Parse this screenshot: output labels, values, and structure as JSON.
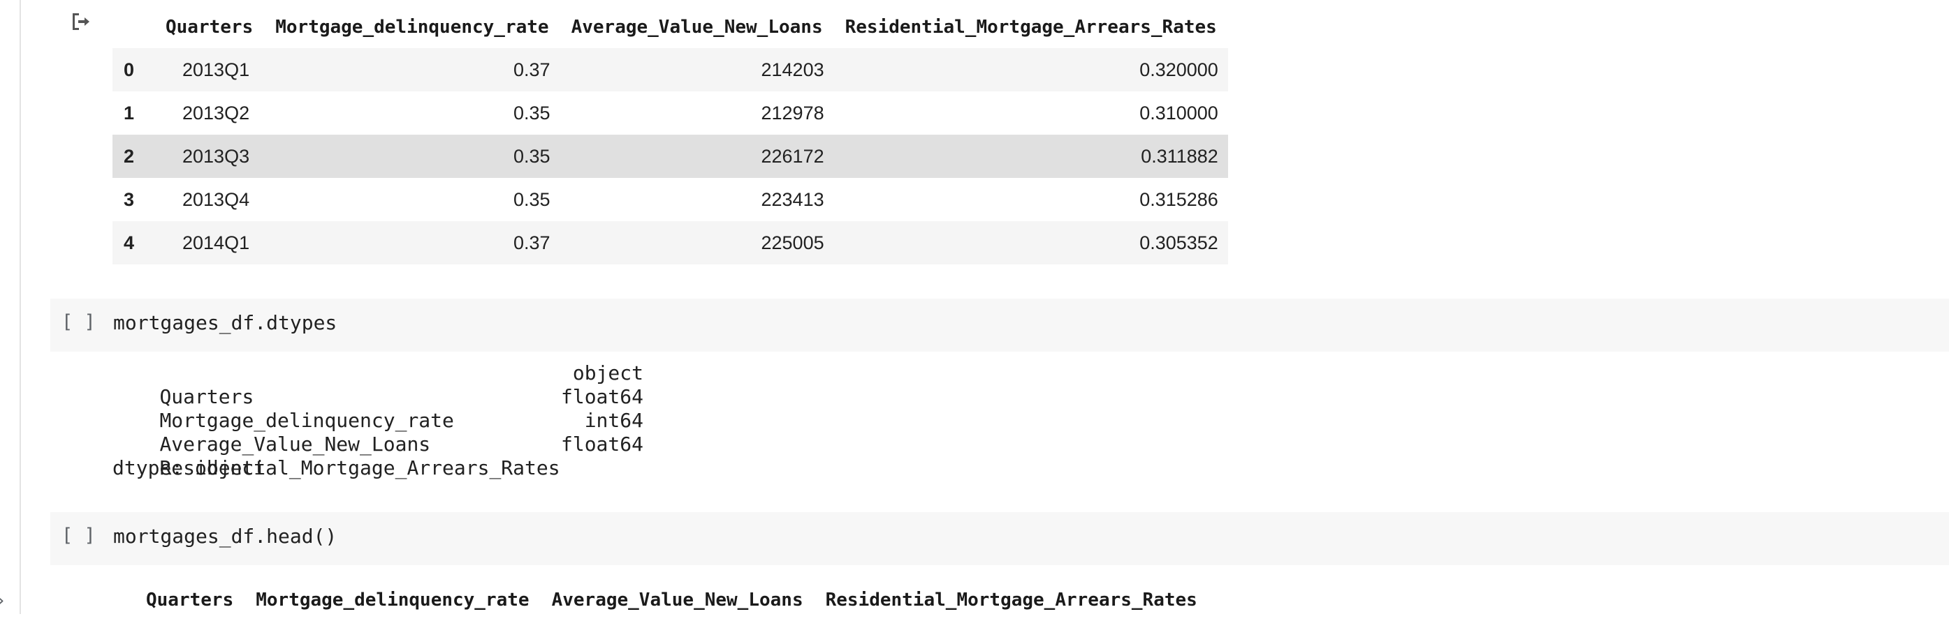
{
  "table1": {
    "headers": [
      "Quarters",
      "Mortgage_delinquency_rate",
      "Average_Value_New_Loans",
      "Residential_Mortgage_Arrears_Rates"
    ],
    "rows": [
      {
        "index": "0",
        "quarters": "2013Q1",
        "delinquency": "0.37",
        "avg_value": "214203",
        "arrears": "0.320000"
      },
      {
        "index": "1",
        "quarters": "2013Q2",
        "delinquency": "0.35",
        "avg_value": "212978",
        "arrears": "0.310000"
      },
      {
        "index": "2",
        "quarters": "2013Q3",
        "delinquency": "0.35",
        "avg_value": "226172",
        "arrears": "0.311882"
      },
      {
        "index": "3",
        "quarters": "2013Q4",
        "delinquency": "0.35",
        "avg_value": "223413",
        "arrears": "0.315286"
      },
      {
        "index": "4",
        "quarters": "2014Q1",
        "delinquency": "0.37",
        "avg_value": "225005",
        "arrears": "0.305352"
      }
    ]
  },
  "cell_dtypes": {
    "bracket": "[ ]",
    "code": "mortgages_df.dtypes"
  },
  "dtypes_output": {
    "rows": [
      {
        "name": "Quarters",
        "type": "object"
      },
      {
        "name": "Mortgage_delinquency_rate",
        "type": "float64"
      },
      {
        "name": "Average_Value_New_Loans",
        "type": "int64"
      },
      {
        "name": "Residential_Mortgage_Arrears_Rates",
        "type": "float64"
      }
    ],
    "footer": "dtype: object"
  },
  "cell_head": {
    "bracket": "[ ]",
    "code": "mortgages_df.head()"
  },
  "table2": {
    "headers": [
      "Quarters",
      "Mortgage_delinquency_rate",
      "Average_Value_New_Loans",
      "Residential_Mortgage_Arrears_Rates"
    ]
  },
  "icons": {
    "output_icon": "output-redirect-icon",
    "side_chevron": "chevron-right-icon",
    "side_chevron_glyph": "›"
  }
}
